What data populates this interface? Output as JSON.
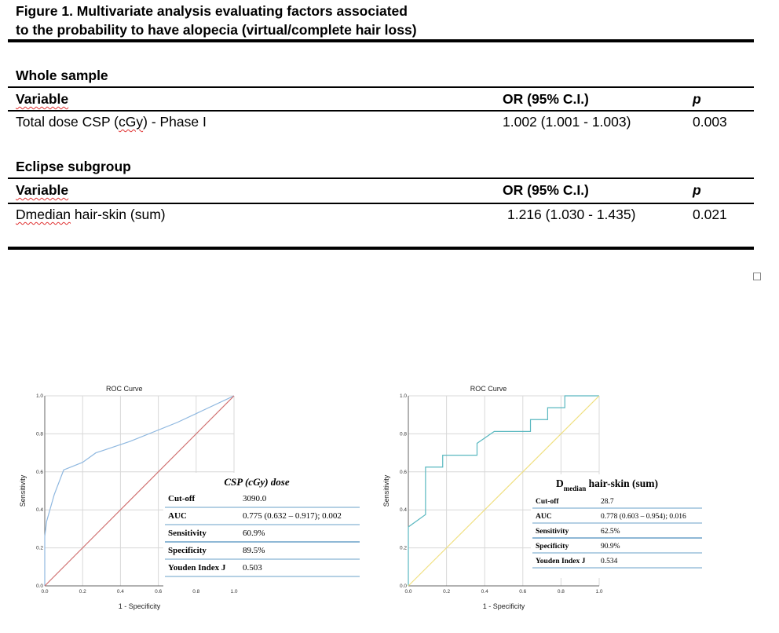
{
  "figure": {
    "title_line1": "Figure 1. Multivariate analysis evaluating factors associated",
    "title_line2": "to the probability to have alopecia (virtual/complete hair loss)"
  },
  "tables": [
    {
      "section": "Whole sample",
      "headers": {
        "variable": "Variable",
        "or": "OR (95% C.I.)",
        "p": "p"
      },
      "rows": [
        {
          "variable": "Total dose CSP (cGy) - Phase I",
          "or": "1.002 (1.001 - 1.003)",
          "p": "0.003"
        }
      ]
    },
    {
      "section": "Eclipse subgroup",
      "headers": {
        "variable": "Variable",
        "or": "OR (95% C.I.)",
        "p": "p"
      },
      "rows": [
        {
          "variable": "Dmedian hair-skin (sum)",
          "or": "1.216 (1.030 - 1.435)",
          "p": "0.021"
        }
      ]
    }
  ],
  "chart_data": [
    {
      "type": "line",
      "title": "ROC Curve",
      "xlabel": "1 - Specificity",
      "ylabel": "Sensitivity",
      "xlim": [
        0,
        1
      ],
      "ylim": [
        0,
        1
      ],
      "ticks": [
        "0.0",
        "0.2",
        "0.4",
        "0.6",
        "0.8",
        "1.0"
      ],
      "grid": true,
      "series": [
        {
          "color": "#8fb8e0",
          "x": [
            0,
            0,
            0.01,
            0.05,
            0.1,
            0.2,
            0.27,
            0.45,
            0.7,
            1.0
          ],
          "y": [
            0,
            0.26,
            0.34,
            0.48,
            0.61,
            0.65,
            0.7,
            0.76,
            0.86,
            1.0
          ]
        },
        {
          "color": "#d07070",
          "x": [
            0,
            1
          ],
          "y": [
            0,
            1
          ]
        }
      ],
      "stats_title": "CSP (cGy) dose",
      "stats": [
        {
          "label": "Cut-off",
          "value": "3090.0"
        },
        {
          "label": "AUC",
          "value": "0.775 (0.632 – 0.917); 0.002"
        },
        {
          "label": "Sensitivity",
          "value": "60.9%"
        },
        {
          "label": "Specificity",
          "value": "89.5%"
        },
        {
          "label": "Youden Index J",
          "value": "0.503"
        }
      ]
    },
    {
      "type": "line",
      "title": "ROC Curve",
      "xlabel": "1 - Specificity",
      "ylabel": "Sensitivity",
      "xlim": [
        0,
        1
      ],
      "ylim": [
        0,
        1
      ],
      "ticks": [
        "0.0",
        "0.2",
        "0.4",
        "0.6",
        "0.8",
        "1.0"
      ],
      "grid": true,
      "series": [
        {
          "color": "#5ab8c0",
          "x": [
            0,
            0,
            0.09,
            0.09,
            0.18,
            0.18,
            0.36,
            0.36,
            0.45,
            0.45,
            0.64,
            0.64,
            0.73,
            0.73,
            0.82,
            0.82,
            1.0
          ],
          "y": [
            0,
            0.31,
            0.375,
            0.625,
            0.625,
            0.6875,
            0.6875,
            0.75,
            0.8125,
            0.8125,
            0.8125,
            0.875,
            0.875,
            0.9375,
            0.9375,
            1.0,
            1.0
          ]
        },
        {
          "color": "#f0e080",
          "x": [
            0,
            1
          ],
          "y": [
            0,
            1
          ]
        }
      ],
      "stats_title_main": "D",
      "stats_title_sub": "median",
      "stats_title_rest": " hair-skin (sum)",
      "stats": [
        {
          "label": "Cut-off",
          "value": "28.7"
        },
        {
          "label": "AUC",
          "value": "0.778 (0.603 – 0.954); 0.016"
        },
        {
          "label": "Sensitivity",
          "value": "62.5%"
        },
        {
          "label": "Specificity",
          "value": "90.9%"
        },
        {
          "label": "Youden Index J",
          "value": "0.534"
        }
      ]
    }
  ]
}
